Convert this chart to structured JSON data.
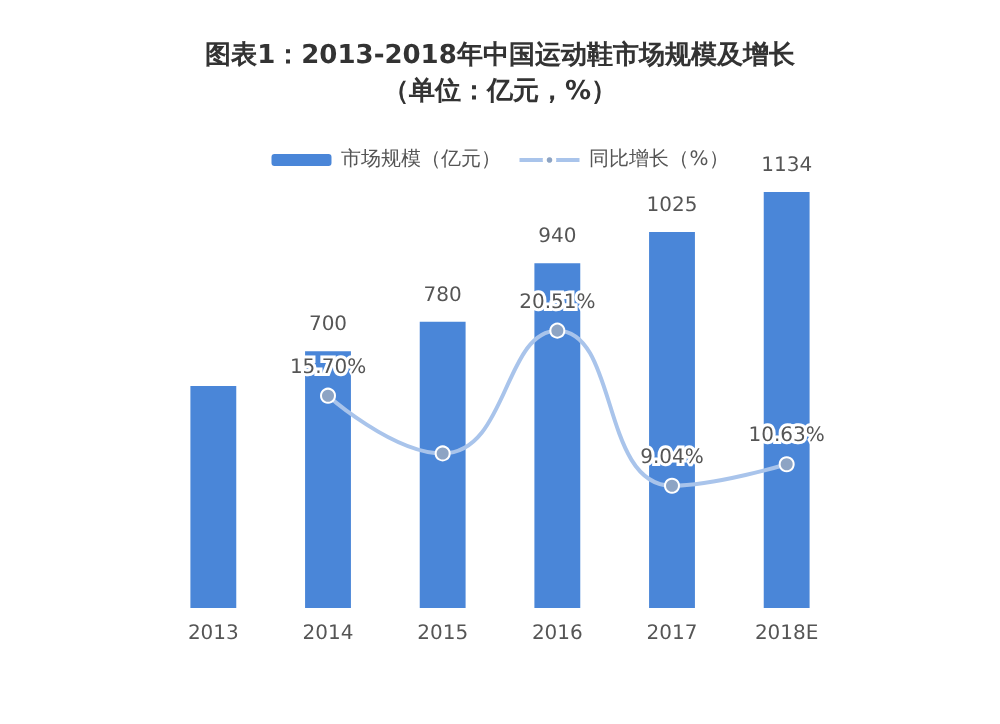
{
  "chart_data": {
    "type": "bar",
    "title": "图表1：2013-2018年中国运动鞋市场规模及增长（单位：亿元，%）",
    "categories": [
      "2013",
      "2014",
      "2015",
      "2016",
      "2017",
      "2018E"
    ],
    "series": [
      {
        "name": "市场规模（亿元）",
        "color": "#4a86d8",
        "values": [
          605,
          700,
          780,
          940,
          1025,
          1134
        ],
        "value_labels": [
          null,
          "700",
          "780",
          "940",
          "1025",
          "1134"
        ]
      },
      {
        "name": "同比增长（%）",
        "type": "line",
        "axis": "y2",
        "color": "#a9c4eb",
        "values": [
          null,
          15.7,
          11.43,
          20.51,
          9.04,
          10.63
        ],
        "value_labels": [
          null,
          "15.70%",
          null,
          "20.51%",
          "9.04%",
          "10.63%"
        ]
      }
    ],
    "legend": "top",
    "marker": "circle"
  }
}
